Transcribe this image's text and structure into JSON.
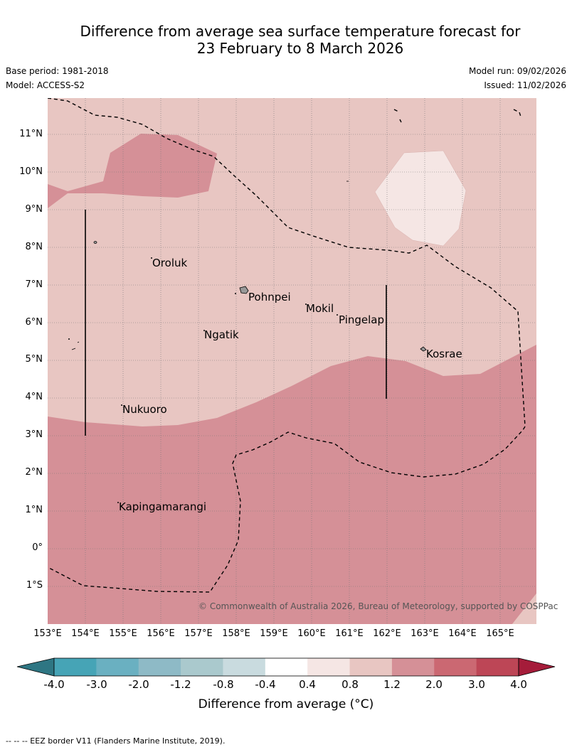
{
  "title_line1": "Difference from average sea surface temperature forecast for",
  "title_line2": "23 February to 8 March 2026",
  "base_period": "Base period: 1981-2018",
  "model": "Model: ACCESS-S2",
  "model_run": "Model run: 09/02/2026",
  "issued": "Issued: 11/02/2026",
  "lat_labels": [
    "11°N",
    "10°N",
    "9°N",
    "8°N",
    "7°N",
    "6°N",
    "5°N",
    "4°N",
    "3°N",
    "2°N",
    "1°N",
    "0°",
    "1°S"
  ],
  "lon_labels": [
    "153°E",
    "154°E",
    "155°E",
    "156°E",
    "157°E",
    "158°E",
    "159°E",
    "160°E",
    "161°E",
    "162°E",
    "163°E",
    "164°E",
    "165°E"
  ],
  "places": [
    {
      "name": "Oroluk",
      "lon": 155.8,
      "lat": 7.6
    },
    {
      "name": "Pohnpei",
      "lon": 158.3,
      "lat": 6.9
    },
    {
      "name": "Mokil",
      "lon": 160.0,
      "lat": 6.6
    },
    {
      "name": "Pingelap",
      "lon": 160.8,
      "lat": 6.3
    },
    {
      "name": "Ngatik",
      "lon": 157.3,
      "lat": 5.8
    },
    {
      "name": "Kosrae",
      "lon": 163.0,
      "lat": 5.3
    },
    {
      "name": "Nukuoro",
      "lon": 155.0,
      "lat": 3.8
    },
    {
      "name": "Kapingamarangi",
      "lon": 154.9,
      "lat": 1.1
    }
  ],
  "copyright": "© Commonwealth of Australia 2026, Bureau of Meteorology, supported by COSPPac",
  "colorbar": {
    "ticks": [
      "-4.0",
      "-3.0",
      "-2.0",
      "-1.2",
      "-0.8",
      "-0.4",
      "0.4",
      "0.8",
      "1.2",
      "2.0",
      "3.0",
      "4.0"
    ],
    "colors": [
      "#2e7683",
      "#46a4b6",
      "#6ab0c1",
      "#8ebac6",
      "#aac9cd",
      "#c9dbdf",
      "#ffffff",
      "#f5e6e4",
      "#e8c6c2",
      "#d59097",
      "#cb6872",
      "#bd4656",
      "#a51c3a"
    ],
    "title": "Difference from average (°C)"
  },
  "footnote": "--  --  -- EEZ border V11 (Flanders Marine Institute, 2019)."
}
